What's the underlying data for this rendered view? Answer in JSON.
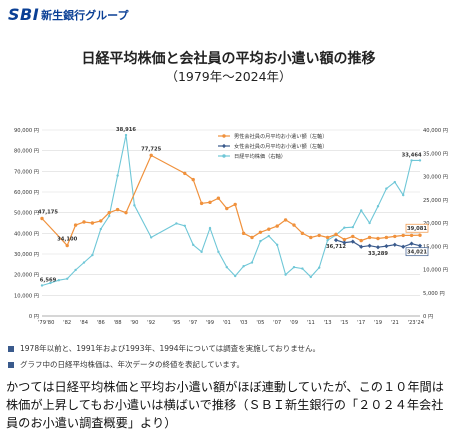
{
  "brand": {
    "mark": "SBI",
    "name": "新生銀行グループ"
  },
  "header": {
    "title": "日経平均株価と会社員の平均お小遣い額の推移",
    "subtitle": "（1979年～2024年）"
  },
  "notes": [
    "1978年以前と、1991年および1993年、1994年については調査を実施しておりません。",
    "グラフ中の日経平均株価は、年次データの終値を表記しています。"
  ],
  "caption": "かつては日経平均株価と平均お小遣い額がほぼ連動していたが、この１０年間は株価が上昇してもお小遣いは横ばいで推移（ＳＢＩ新生銀行の「２０２４年会社員のお小遣い調査概要」より）",
  "colors": {
    "male": "#f0913c",
    "female": "#3a5a8c",
    "nikkei": "#6fc7d7",
    "grid": "#d9d9d9",
    "brand": "#0a3f95"
  },
  "chart_data": {
    "type": "line",
    "title": "日経平均株価と会社員の平均お小遣い額の推移",
    "subtitle": "（1979年～2024年）",
    "legend_position": "top-right",
    "grid": true,
    "x": [
      1979,
      1980,
      1981,
      1982,
      1983,
      1984,
      1985,
      1986,
      1987,
      1988,
      1989,
      1990,
      1992,
      1995,
      1996,
      1997,
      1998,
      1999,
      2000,
      2001,
      2002,
      2003,
      2004,
      2005,
      2006,
      2007,
      2008,
      2009,
      2010,
      2011,
      2012,
      2013,
      2014,
      2015,
      2016,
      2017,
      2018,
      2019,
      2020,
      2021,
      2022,
      2023,
      2024
    ],
    "x_tick_labels": [
      "'79",
      "'80",
      "'82",
      "'84",
      "'86",
      "'88",
      "'90",
      "'92",
      "'95",
      "'97",
      "'99",
      "'01",
      "'03",
      "'05",
      "'07",
      "'09",
      "'11",
      "'13",
      "'15",
      "'17",
      "'19",
      "'21",
      "'23",
      "'24"
    ],
    "x_tick_years": [
      1979,
      1980,
      1982,
      1984,
      1986,
      1988,
      1990,
      1992,
      1995,
      1997,
      1999,
      2001,
      2003,
      2005,
      2007,
      2009,
      2011,
      2013,
      2015,
      2017,
      2019,
      2021,
      2023,
      2024
    ],
    "y_left": {
      "range": [
        0,
        90000
      ],
      "step": 10000,
      "unit": "円",
      "tick_labels": [
        "0 円",
        "10,000 円",
        "20,000 円",
        "30,000 円",
        "40,000 円",
        "50,000 円",
        "60,000 円",
        "70,000 円",
        "80,000 円",
        "90,000 円"
      ]
    },
    "y_right": {
      "range": [
        0,
        40000
      ],
      "step": 5000,
      "unit": "円",
      "tick_labels": [
        "0 円",
        "5,000 円",
        "10,000 円",
        "15,000 円",
        "20,000 円",
        "25,000 円",
        "30,000 円",
        "35,000 円",
        "40,000 円"
      ]
    },
    "series": [
      {
        "name": "男性会社員の月平均お小遣い額（左軸）",
        "axis": "left",
        "values": [
          47175,
          null,
          null,
          34100,
          44000,
          45500,
          45000,
          46000,
          50000,
          51500,
          50000,
          null,
          77725,
          null,
          69000,
          66000,
          54500,
          55000,
          57000,
          52000,
          54000,
          40000,
          38000,
          40500,
          42000,
          43500,
          46500,
          44000,
          40000,
          38000,
          39000,
          38000,
          39500,
          37000,
          38500,
          36500,
          38000,
          37500,
          38000,
          38500,
          39000,
          39000,
          39081
        ],
        "labels": [
          {
            "x": 1979,
            "text": "47,175"
          },
          {
            "x": 1982,
            "text": "34,100"
          },
          {
            "x": 1992,
            "text": "77,725"
          },
          {
            "x": 2024,
            "text": "39,081"
          }
        ]
      },
      {
        "name": "女性会社員の月平均お小遣い額（左軸）",
        "axis": "left",
        "values": [
          null,
          null,
          null,
          null,
          null,
          null,
          null,
          null,
          null,
          null,
          null,
          null,
          null,
          null,
          null,
          null,
          null,
          null,
          null,
          null,
          null,
          null,
          null,
          null,
          null,
          null,
          null,
          null,
          null,
          null,
          null,
          null,
          36712,
          35500,
          36000,
          33500,
          34000,
          33289,
          33800,
          34500,
          33500,
          35000,
          34021
        ],
        "labels": [
          {
            "x": 2014,
            "text": "36,712"
          },
          {
            "x": 2019,
            "text": "33,289"
          },
          {
            "x": 2024,
            "text": "34,021"
          }
        ]
      },
      {
        "name": "日経平均株価（右軸）",
        "axis": "right",
        "values": [
          6569,
          7100,
          7700,
          8000,
          9900,
          11500,
          13100,
          18700,
          21500,
          30200,
          38916,
          23800,
          16900,
          19900,
          19400,
          15300,
          13800,
          18900,
          13800,
          10500,
          8600,
          10700,
          11500,
          16100,
          17200,
          15300,
          8900,
          10500,
          10200,
          8400,
          10400,
          16300,
          17400,
          19000,
          19100,
          22700,
          20000,
          23600,
          27400,
          28800,
          26000,
          33464,
          33464
        ],
        "labels": [
          {
            "x": 1979,
            "text": "6,569"
          },
          {
            "x": 1989,
            "text": "38,916"
          },
          {
            "x": 2023,
            "text": "33,464"
          }
        ]
      }
    ]
  }
}
